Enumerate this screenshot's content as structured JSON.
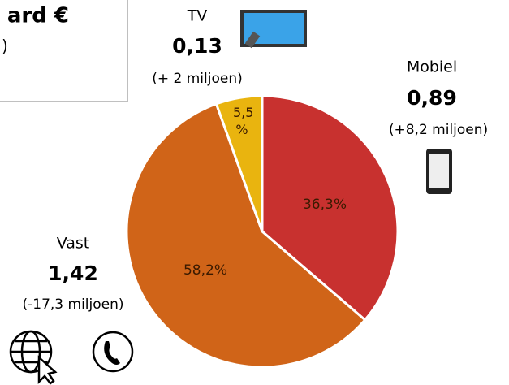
{
  "chart_data": {
    "type": "pie",
    "title": "ard €",
    "subtitle": ")",
    "categories": [
      "Mobiel",
      "Vast",
      "TV"
    ],
    "values": [
      36.3,
      58.2,
      5.5
    ],
    "value_labels": [
      "36,3%",
      "58,2%",
      "5,5 %"
    ],
    "colors": [
      "#c8312f",
      "#d06418",
      "#e9b40f"
    ],
    "amounts": [
      {
        "value": 0.89,
        "label": "0,89"
      },
      {
        "value": 1.42,
        "label": "1,42"
      },
      {
        "value": 0.13,
        "label": "0,13"
      }
    ],
    "changes": [
      "(+8,2 miljoen)",
      "(-17,3 miljoen)",
      "(+ 2 miljoen)"
    ]
  }
}
